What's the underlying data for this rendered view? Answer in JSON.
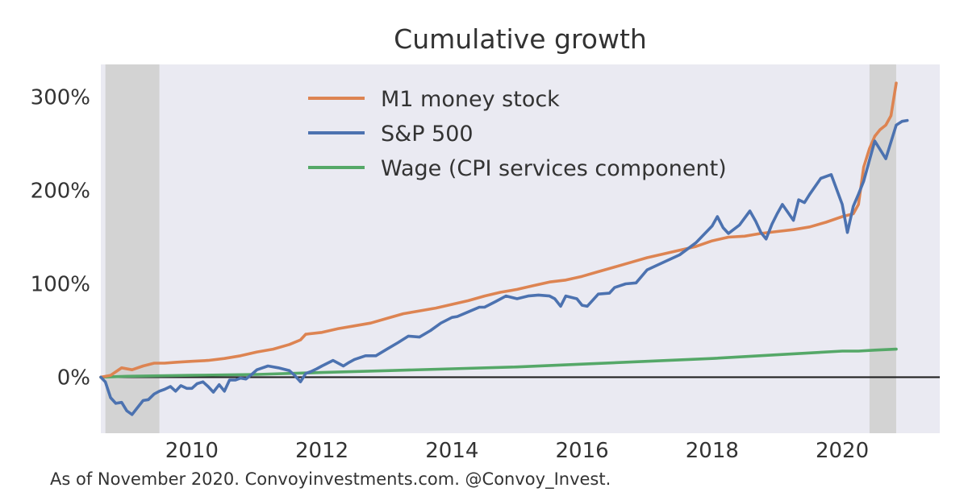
{
  "footer_note": "As of November 2020. Convoyinvestments.com. @Convoy_Invest.",
  "chart_data": {
    "type": "line",
    "title": "Cumulative growth",
    "xlabel": "",
    "ylabel": "",
    "xlim": [
      2008.6,
      2021.5
    ],
    "ylim": [
      -60,
      335
    ],
    "x_ticks": [
      2010,
      2012,
      2014,
      2016,
      2018,
      2020
    ],
    "x_tick_labels": [
      "2010",
      "2012",
      "2014",
      "2016",
      "2018",
      "2020"
    ],
    "y_ticks": [
      0,
      100,
      200,
      300
    ],
    "y_tick_labels": [
      "0%",
      "100%",
      "200%",
      "300%"
    ],
    "grid": false,
    "legend": "upper-center",
    "background_color": "#eaeaf2",
    "zero_line_color": "#222222",
    "recession_shading": [
      {
        "start": 2008.67,
        "end": 2009.5
      },
      {
        "start": 2020.42,
        "end": 2020.83
      }
    ],
    "recession_color": "#d3d3d3",
    "series": [
      {
        "name": "M1 money stock",
        "color": "#dd8452",
        "x": [
          2008.6,
          2008.75,
          2008.92,
          2009.08,
          2009.25,
          2009.42,
          2009.58,
          2009.75,
          2010.0,
          2010.25,
          2010.5,
          2010.75,
          2011.0,
          2011.25,
          2011.5,
          2011.67,
          2011.75,
          2012.0,
          2012.25,
          2012.5,
          2012.75,
          2013.0,
          2013.25,
          2013.5,
          2013.75,
          2014.0,
          2014.25,
          2014.5,
          2014.75,
          2015.0,
          2015.25,
          2015.5,
          2015.75,
          2016.0,
          2016.25,
          2016.5,
          2016.75,
          2017.0,
          2017.25,
          2017.5,
          2017.75,
          2018.0,
          2018.25,
          2018.5,
          2018.75,
          2019.0,
          2019.25,
          2019.5,
          2019.75,
          2020.0,
          2020.17,
          2020.25,
          2020.33,
          2020.42,
          2020.5,
          2020.58,
          2020.67,
          2020.75,
          2020.83
        ],
        "values": [
          0,
          2,
          10,
          8,
          12,
          15,
          15,
          16,
          17,
          18,
          20,
          23,
          27,
          30,
          35,
          40,
          46,
          48,
          52,
          55,
          58,
          63,
          68,
          71,
          74,
          78,
          82,
          87,
          91,
          94,
          98,
          102,
          104,
          108,
          113,
          118,
          123,
          128,
          132,
          136,
          140,
          146,
          150,
          151,
          154,
          156,
          158,
          161,
          166,
          172,
          175,
          185,
          225,
          245,
          258,
          265,
          270,
          280,
          315
        ]
      },
      {
        "name": "S&P 500",
        "color": "#4c72b0",
        "x": [
          2008.6,
          2008.67,
          2008.75,
          2008.83,
          2008.92,
          2009.0,
          2009.08,
          2009.17,
          2009.25,
          2009.33,
          2009.42,
          2009.5,
          2009.58,
          2009.67,
          2009.75,
          2009.83,
          2009.92,
          2010.0,
          2010.08,
          2010.17,
          2010.25,
          2010.33,
          2010.42,
          2010.5,
          2010.58,
          2010.67,
          2010.75,
          2010.83,
          2010.92,
          2011.0,
          2011.17,
          2011.33,
          2011.5,
          2011.58,
          2011.67,
          2011.75,
          2011.83,
          2011.92,
          2012.0,
          2012.17,
          2012.33,
          2012.42,
          2012.5,
          2012.67,
          2012.83,
          2013.0,
          2013.17,
          2013.33,
          2013.5,
          2013.67,
          2013.83,
          2014.0,
          2014.08,
          2014.25,
          2014.42,
          2014.5,
          2014.67,
          2014.83,
          2015.0,
          2015.17,
          2015.33,
          2015.5,
          2015.58,
          2015.67,
          2015.75,
          2015.92,
          2016.0,
          2016.08,
          2016.25,
          2016.42,
          2016.5,
          2016.67,
          2016.83,
          2017.0,
          2017.25,
          2017.5,
          2017.75,
          2018.0,
          2018.08,
          2018.17,
          2018.25,
          2018.42,
          2018.58,
          2018.67,
          2018.75,
          2018.83,
          2018.92,
          2019.0,
          2019.08,
          2019.25,
          2019.33,
          2019.42,
          2019.5,
          2019.67,
          2019.83,
          2020.0,
          2020.08,
          2020.17,
          2020.25,
          2020.33,
          2020.5,
          2020.67,
          2020.83,
          2020.92,
          2021.0
        ],
        "values": [
          0,
          -5,
          -22,
          -28,
          -27,
          -36,
          -40,
          -32,
          -25,
          -24,
          -18,
          -15,
          -13,
          -10,
          -15,
          -9,
          -12,
          -12,
          -7,
          -5,
          -10,
          -16,
          -8,
          -15,
          -3,
          -3,
          -1,
          -2,
          3,
          8,
          12,
          10,
          7,
          2,
          -5,
          4,
          6,
          9,
          12,
          18,
          12,
          16,
          19,
          23,
          23,
          30,
          37,
          44,
          43,
          50,
          58,
          64,
          65,
          70,
          75,
          75,
          81,
          87,
          84,
          87,
          88,
          87,
          84,
          76,
          87,
          84,
          77,
          76,
          89,
          90,
          96,
          100,
          101,
          115,
          123,
          131,
          144,
          162,
          172,
          160,
          154,
          163,
          178,
          167,
          155,
          148,
          164,
          175,
          185,
          168,
          190,
          187,
          196,
          213,
          217,
          185,
          155,
          183,
          196,
          210,
          253,
          234,
          270,
          274,
          275
        ]
      },
      {
        "name": "Wage (CPI services component)",
        "color": "#55a868",
        "x": [
          2008.6,
          2009,
          2010,
          2011,
          2012,
          2013,
          2014,
          2015,
          2016,
          2017,
          2018,
          2019,
          2020,
          2020.25,
          2020.5,
          2020.83
        ],
        "values": [
          0,
          1,
          2,
          3,
          5,
          7,
          9,
          11,
          14,
          17,
          20,
          24,
          28,
          28,
          29,
          30
        ]
      }
    ]
  }
}
